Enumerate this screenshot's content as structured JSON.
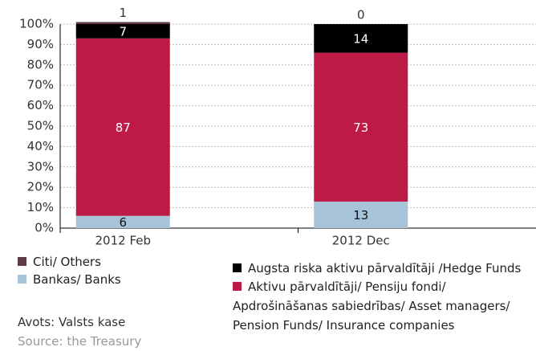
{
  "chart_data": {
    "type": "stacked_bar",
    "categories": [
      "2012 Feb",
      "2012 Dec"
    ],
    "series": [
      {
        "name": "Bankas/ Banks",
        "color": "#a7c3d7",
        "values": [
          6,
          13
        ]
      },
      {
        "name": "Aktivu pārvaldītāji/ Pensiju fondi/ Apdrošināšanas sabiedrības/ Asset managers/ Pension Funds/ Insurance companies",
        "color": "#be1a48",
        "values": [
          87,
          73
        ]
      },
      {
        "name": "Augsta riska aktivu pārvaldītāji /Hedge Funds",
        "color": "#000000",
        "values": [
          7,
          14
        ]
      },
      {
        "name": "Citi/ Others",
        "color": "#5c3a48",
        "values": [
          1,
          0
        ]
      }
    ],
    "ylim": [
      0,
      100
    ],
    "yticks": [
      {
        "value": 0,
        "label": "0%"
      },
      {
        "value": 10,
        "label": "10%"
      },
      {
        "value": 20,
        "label": "20%"
      },
      {
        "value": 30,
        "label": "30%"
      },
      {
        "value": 40,
        "label": "40%"
      },
      {
        "value": 50,
        "label": "50%"
      },
      {
        "value": 60,
        "label": "60%"
      },
      {
        "value": 70,
        "label": "70%"
      },
      {
        "value": 80,
        "label": "80%"
      },
      {
        "value": 90,
        "label": "90%"
      },
      {
        "value": 100,
        "label": "100%"
      }
    ],
    "grid": true,
    "source": [
      "Avots: Valsts kase",
      "Source: the Treasury"
    ]
  }
}
